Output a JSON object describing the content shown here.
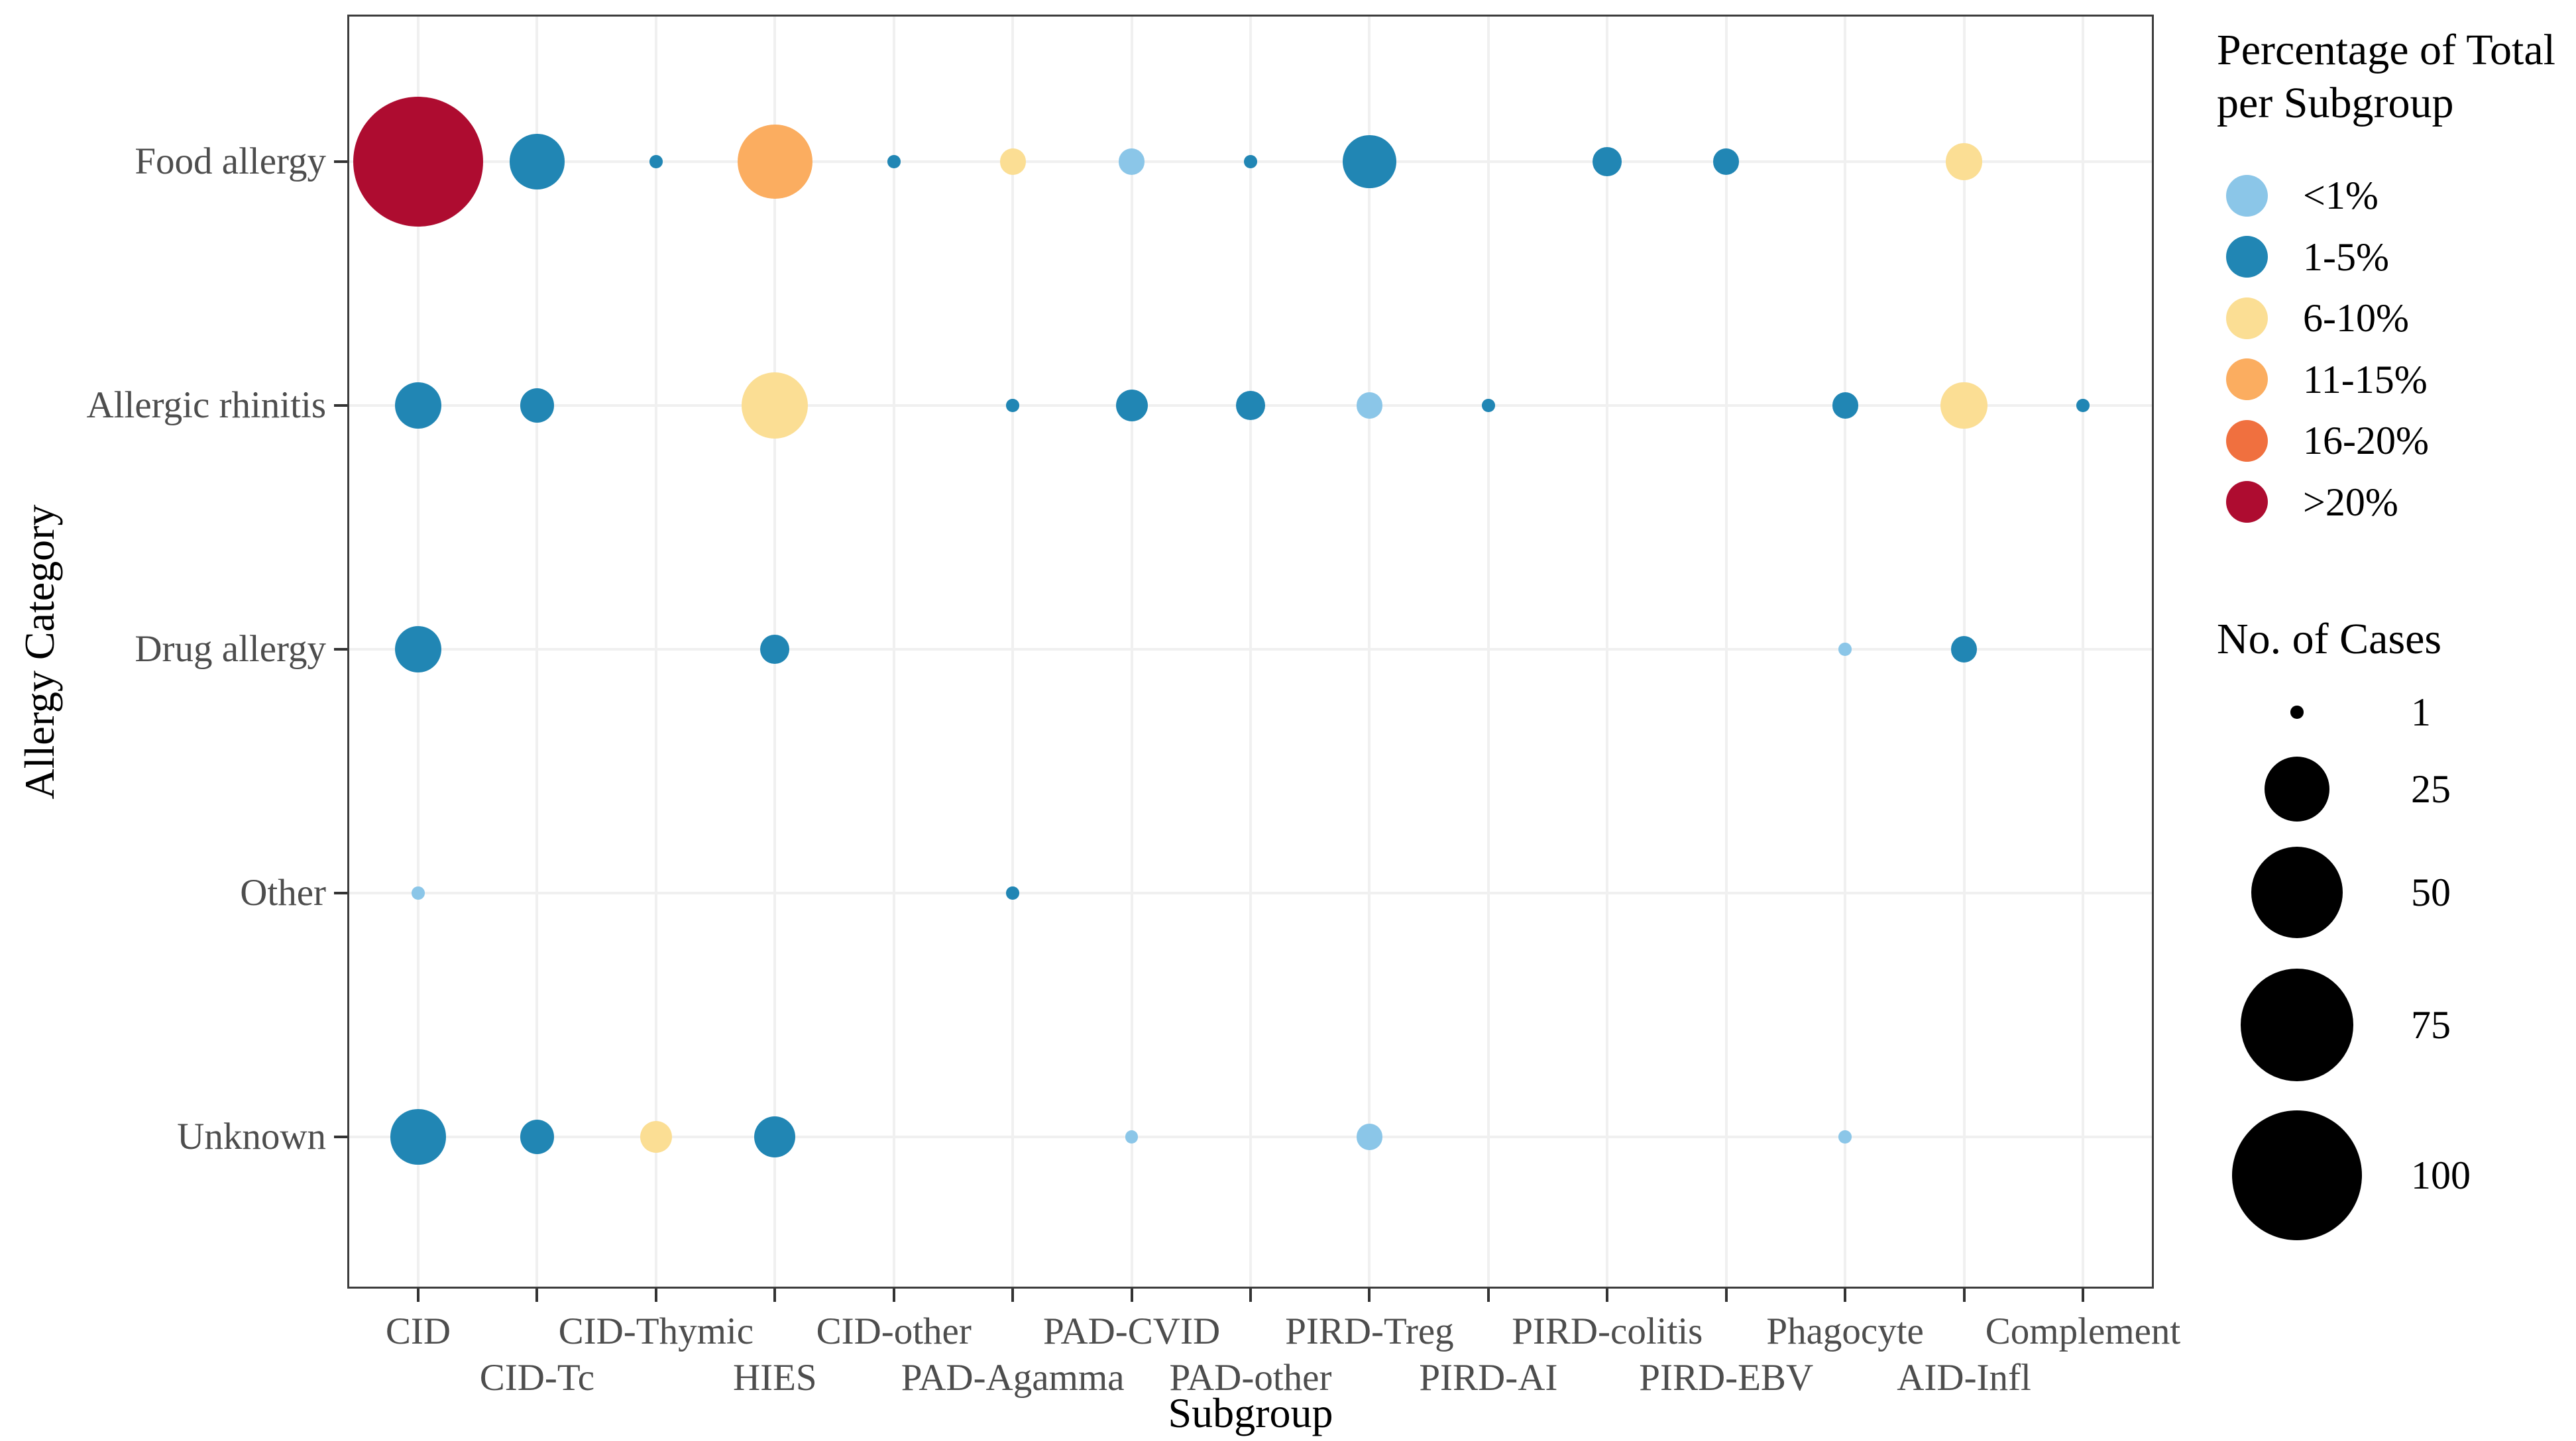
{
  "figure": {
    "x_axis_title": "Subgroup",
    "y_axis_title": "Allergy Category"
  },
  "chart_data": {
    "type": "scatter",
    "subtype": "bubble-matrix",
    "grid": true,
    "x_categories": [
      "CID",
      "CID-Tc",
      "CID-Thymic",
      "HIES",
      "CID-other",
      "PAD-Agamma",
      "PAD-CVID",
      "PAD-other",
      "PIRD-Treg",
      "PIRD-AI",
      "PIRD-colitis",
      "PIRD-EBV",
      "Phagocyte",
      "AID-Infl",
      "Complement"
    ],
    "y_categories": [
      "Food allergy",
      "Allergic rhinitis",
      "Drug allergy",
      "Other",
      "Unknown"
    ],
    "xlabel": "Subgroup",
    "ylabel": "Allergy Category",
    "points": [
      {
        "y": "Food allergy",
        "x": "CID",
        "cases": 100,
        "pct": ">20%"
      },
      {
        "y": "Food allergy",
        "x": "CID-Tc",
        "cases": 18,
        "pct": "1-5%"
      },
      {
        "y": "Food allergy",
        "x": "CID-Thymic",
        "cases": 1,
        "pct": "1-5%"
      },
      {
        "y": "Food allergy",
        "x": "HIES",
        "cases": 33,
        "pct": "11-15%"
      },
      {
        "y": "Food allergy",
        "x": "CID-other",
        "cases": 1,
        "pct": "1-5%"
      },
      {
        "y": "Food allergy",
        "x": "PAD-Agamma",
        "cases": 4,
        "pct": "6-10%"
      },
      {
        "y": "Food allergy",
        "x": "PAD-CVID",
        "cases": 4,
        "pct": "<1%"
      },
      {
        "y": "Food allergy",
        "x": "PAD-other",
        "cases": 1,
        "pct": "1-5%"
      },
      {
        "y": "Food allergy",
        "x": "PIRD-Treg",
        "cases": 17,
        "pct": "1-5%"
      },
      {
        "y": "Food allergy",
        "x": "PIRD-colitis",
        "cases": 5,
        "pct": "1-5%"
      },
      {
        "y": "Food allergy",
        "x": "PIRD-EBV",
        "cases": 4,
        "pct": "1-5%"
      },
      {
        "y": "Food allergy",
        "x": "AID-Infl",
        "cases": 8,
        "pct": "6-10%"
      },
      {
        "y": "Allergic rhinitis",
        "x": "CID",
        "cases": 13,
        "pct": "1-5%"
      },
      {
        "y": "Allergic rhinitis",
        "x": "CID-Tc",
        "cases": 7,
        "pct": "1-5%"
      },
      {
        "y": "Allergic rhinitis",
        "x": "HIES",
        "cases": 26,
        "pct": "6-10%"
      },
      {
        "y": "Allergic rhinitis",
        "x": "PAD-Agamma",
        "cases": 1,
        "pct": "1-5%"
      },
      {
        "y": "Allergic rhinitis",
        "x": "PAD-CVID",
        "cases": 6,
        "pct": "1-5%"
      },
      {
        "y": "Allergic rhinitis",
        "x": "PAD-other",
        "cases": 5,
        "pct": "1-5%"
      },
      {
        "y": "Allergic rhinitis",
        "x": "PIRD-Treg",
        "cases": 4,
        "pct": "<1%"
      },
      {
        "y": "Allergic rhinitis",
        "x": "PIRD-AI",
        "cases": 1,
        "pct": "1-5%"
      },
      {
        "y": "Allergic rhinitis",
        "x": "Phagocyte",
        "cases": 4,
        "pct": "1-5%"
      },
      {
        "y": "Allergic rhinitis",
        "x": "AID-Infl",
        "cases": 13,
        "pct": "6-10%"
      },
      {
        "y": "Allergic rhinitis",
        "x": "Complement",
        "cases": 1,
        "pct": "1-5%"
      },
      {
        "y": "Drug allergy",
        "x": "CID",
        "cases": 13,
        "pct": "1-5%"
      },
      {
        "y": "Drug allergy",
        "x": "HIES",
        "cases": 5,
        "pct": "1-5%"
      },
      {
        "y": "Drug allergy",
        "x": "Phagocyte",
        "cases": 1,
        "pct": "<1%"
      },
      {
        "y": "Drug allergy",
        "x": "AID-Infl",
        "cases": 4,
        "pct": "1-5%"
      },
      {
        "y": "Other",
        "x": "CID",
        "cases": 1,
        "pct": "<1%"
      },
      {
        "y": "Other",
        "x": "PAD-Agamma",
        "cases": 1,
        "pct": "1-5%"
      },
      {
        "y": "Unknown",
        "x": "CID",
        "cases": 18,
        "pct": "1-5%"
      },
      {
        "y": "Unknown",
        "x": "CID-Tc",
        "cases": 7,
        "pct": "1-5%"
      },
      {
        "y": "Unknown",
        "x": "CID-Thymic",
        "cases": 6,
        "pct": "6-10%"
      },
      {
        "y": "Unknown",
        "x": "HIES",
        "cases": 10,
        "pct": "1-5%"
      },
      {
        "y": "Unknown",
        "x": "PAD-CVID",
        "cases": 1,
        "pct": "<1%"
      },
      {
        "y": "Unknown",
        "x": "PIRD-Treg",
        "cases": 4,
        "pct": "<1%"
      },
      {
        "y": "Unknown",
        "x": "Phagocyte",
        "cases": 1,
        "pct": "<1%"
      }
    ],
    "color_legend": {
      "title": "Percentage of Total per Subgroup",
      "position": "right-top",
      "bins": [
        {
          "label": "<1%",
          "color": "#8bc6e8"
        },
        {
          "label": "1-5%",
          "color": "#2186b4"
        },
        {
          "label": "6-10%",
          "color": "#fbde94"
        },
        {
          "label": "11-15%",
          "color": "#fbad60"
        },
        {
          "label": "16-20%",
          "color": "#f0703f"
        },
        {
          "label": ">20%",
          "color": "#ae0c30"
        }
      ]
    },
    "size_legend": {
      "title": "No. of Cases",
      "position": "right-bottom",
      "values": [
        1,
        25,
        50,
        75,
        100
      ],
      "swatch_color": "#000000"
    }
  }
}
